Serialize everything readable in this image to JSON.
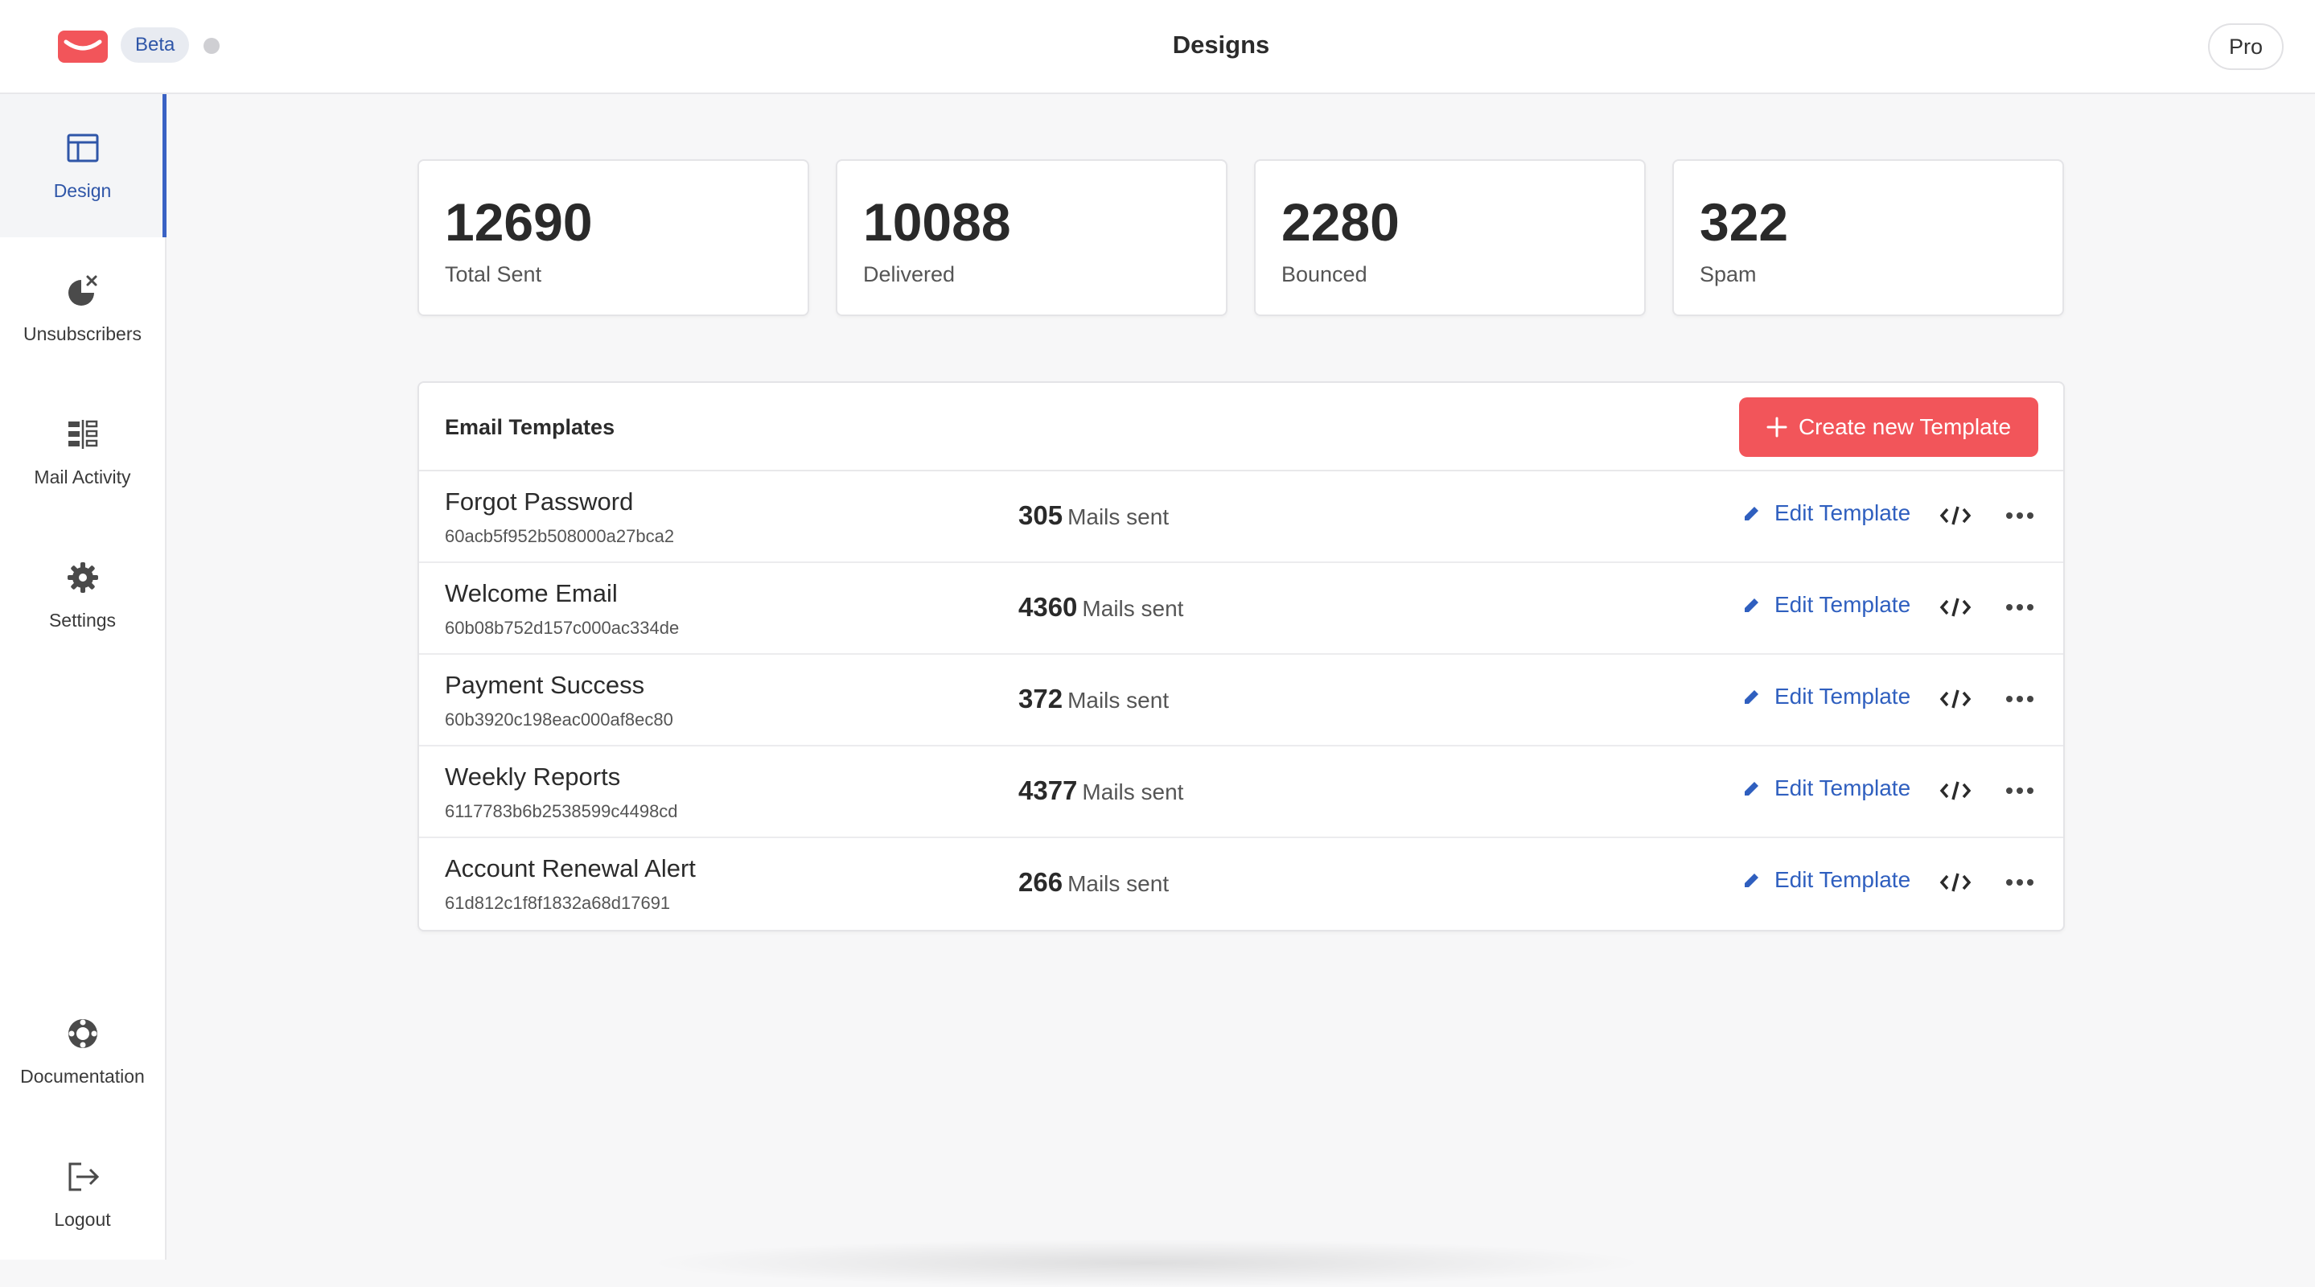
{
  "app": {
    "badge": "Beta",
    "title": "Designs",
    "plan_label": "Pro",
    "brand_color": "#f2555a",
    "accent_color": "#2f56a8"
  },
  "sidebar": {
    "items": [
      {
        "label": "Design",
        "icon": "layout-icon",
        "active": true
      },
      {
        "label": "Unsubscribers",
        "icon": "unsubscribe-icon",
        "active": false
      },
      {
        "label": "Mail Activity",
        "icon": "mail-activity-icon",
        "active": false
      },
      {
        "label": "Settings",
        "icon": "gear-icon",
        "active": false
      }
    ],
    "bottom_items": [
      {
        "label": "Documentation",
        "icon": "lifebuoy-icon"
      },
      {
        "label": "Logout",
        "icon": "logout-icon"
      }
    ]
  },
  "stats": [
    {
      "value": "12690",
      "label": "Total Sent"
    },
    {
      "value": "10088",
      "label": "Delivered"
    },
    {
      "value": "2280",
      "label": "Bounced"
    },
    {
      "value": "322",
      "label": "Spam"
    }
  ],
  "templates": {
    "title": "Email Templates",
    "create_label": "Create new Template",
    "count_suffix": "Mails sent",
    "edit_label": "Edit Template",
    "rows": [
      {
        "name": "Forgot Password",
        "id": "60acb5f952b508000a27bca2",
        "count": "305"
      },
      {
        "name": "Welcome Email",
        "id": "60b08b752d157c000ac334de",
        "count": "4360"
      },
      {
        "name": "Payment Success",
        "id": "60b3920c198eac000af8ec80",
        "count": "372"
      },
      {
        "name": "Weekly Reports",
        "id": "6117783b6b2538599c4498cd",
        "count": "4377"
      },
      {
        "name": "Account Renewal Alert",
        "id": "61d812c1f8f1832a68d17691",
        "count": "266"
      }
    ]
  }
}
